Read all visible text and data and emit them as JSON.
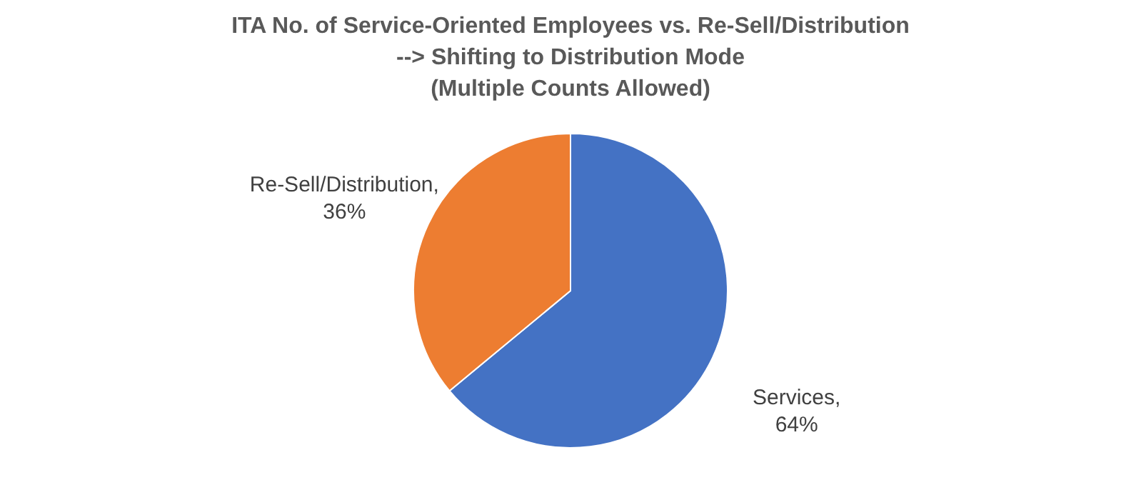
{
  "chart_data": {
    "type": "pie",
    "title": "ITA No. of Service-Oriented Employees vs. Re-Sell/Distribution\n--> Shifting to Distribution Mode\n(Multiple Counts Allowed)",
    "categories": [
      "Services",
      "Re-Sell/Distribution"
    ],
    "values": [
      64,
      36
    ],
    "colors": [
      "#4472c4",
      "#ed7d31"
    ],
    "value_labels": [
      ", 64%",
      ", 36%"
    ],
    "legend": false
  }
}
